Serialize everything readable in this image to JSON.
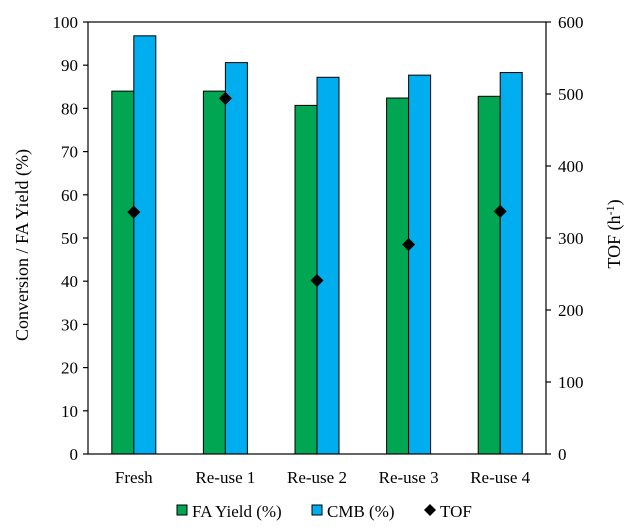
{
  "chart_data": {
    "type": "bar",
    "title": "",
    "categories": [
      "Fresh",
      "Re-use 1",
      "Re-use 2",
      "Re-use 3",
      "Re-use 4"
    ],
    "series": [
      {
        "name": "FA Yield (%)",
        "kind": "bar",
        "axis": "left",
        "color": "#00a651",
        "values": [
          84,
          84,
          80.7,
          82.4,
          82.8
        ]
      },
      {
        "name": "CMB (%)",
        "kind": "bar",
        "axis": "left",
        "color": "#00aeef",
        "values": [
          96.8,
          90.6,
          87.2,
          87.7,
          88.3
        ]
      },
      {
        "name": "TOF",
        "kind": "scatter",
        "axis": "right",
        "marker": "diamond",
        "color": "#000000",
        "values": [
          336,
          494,
          241,
          291,
          337
        ]
      }
    ],
    "ylabel": "Conversion / FA Yield (%)",
    "y2label_main": "TOF (h",
    "y2label_sup": "-1",
    "y2label_end": ")",
    "ylim": [
      0,
      100
    ],
    "y2lim": [
      0,
      600
    ],
    "yticks": [
      "0",
      "10",
      "20",
      "30",
      "40",
      "50",
      "60",
      "70",
      "80",
      "90",
      "100"
    ],
    "y2ticks": [
      "0",
      "100",
      "200",
      "300",
      "400",
      "500",
      "600"
    ],
    "grid": false,
    "legend_position": "bottom-center"
  }
}
